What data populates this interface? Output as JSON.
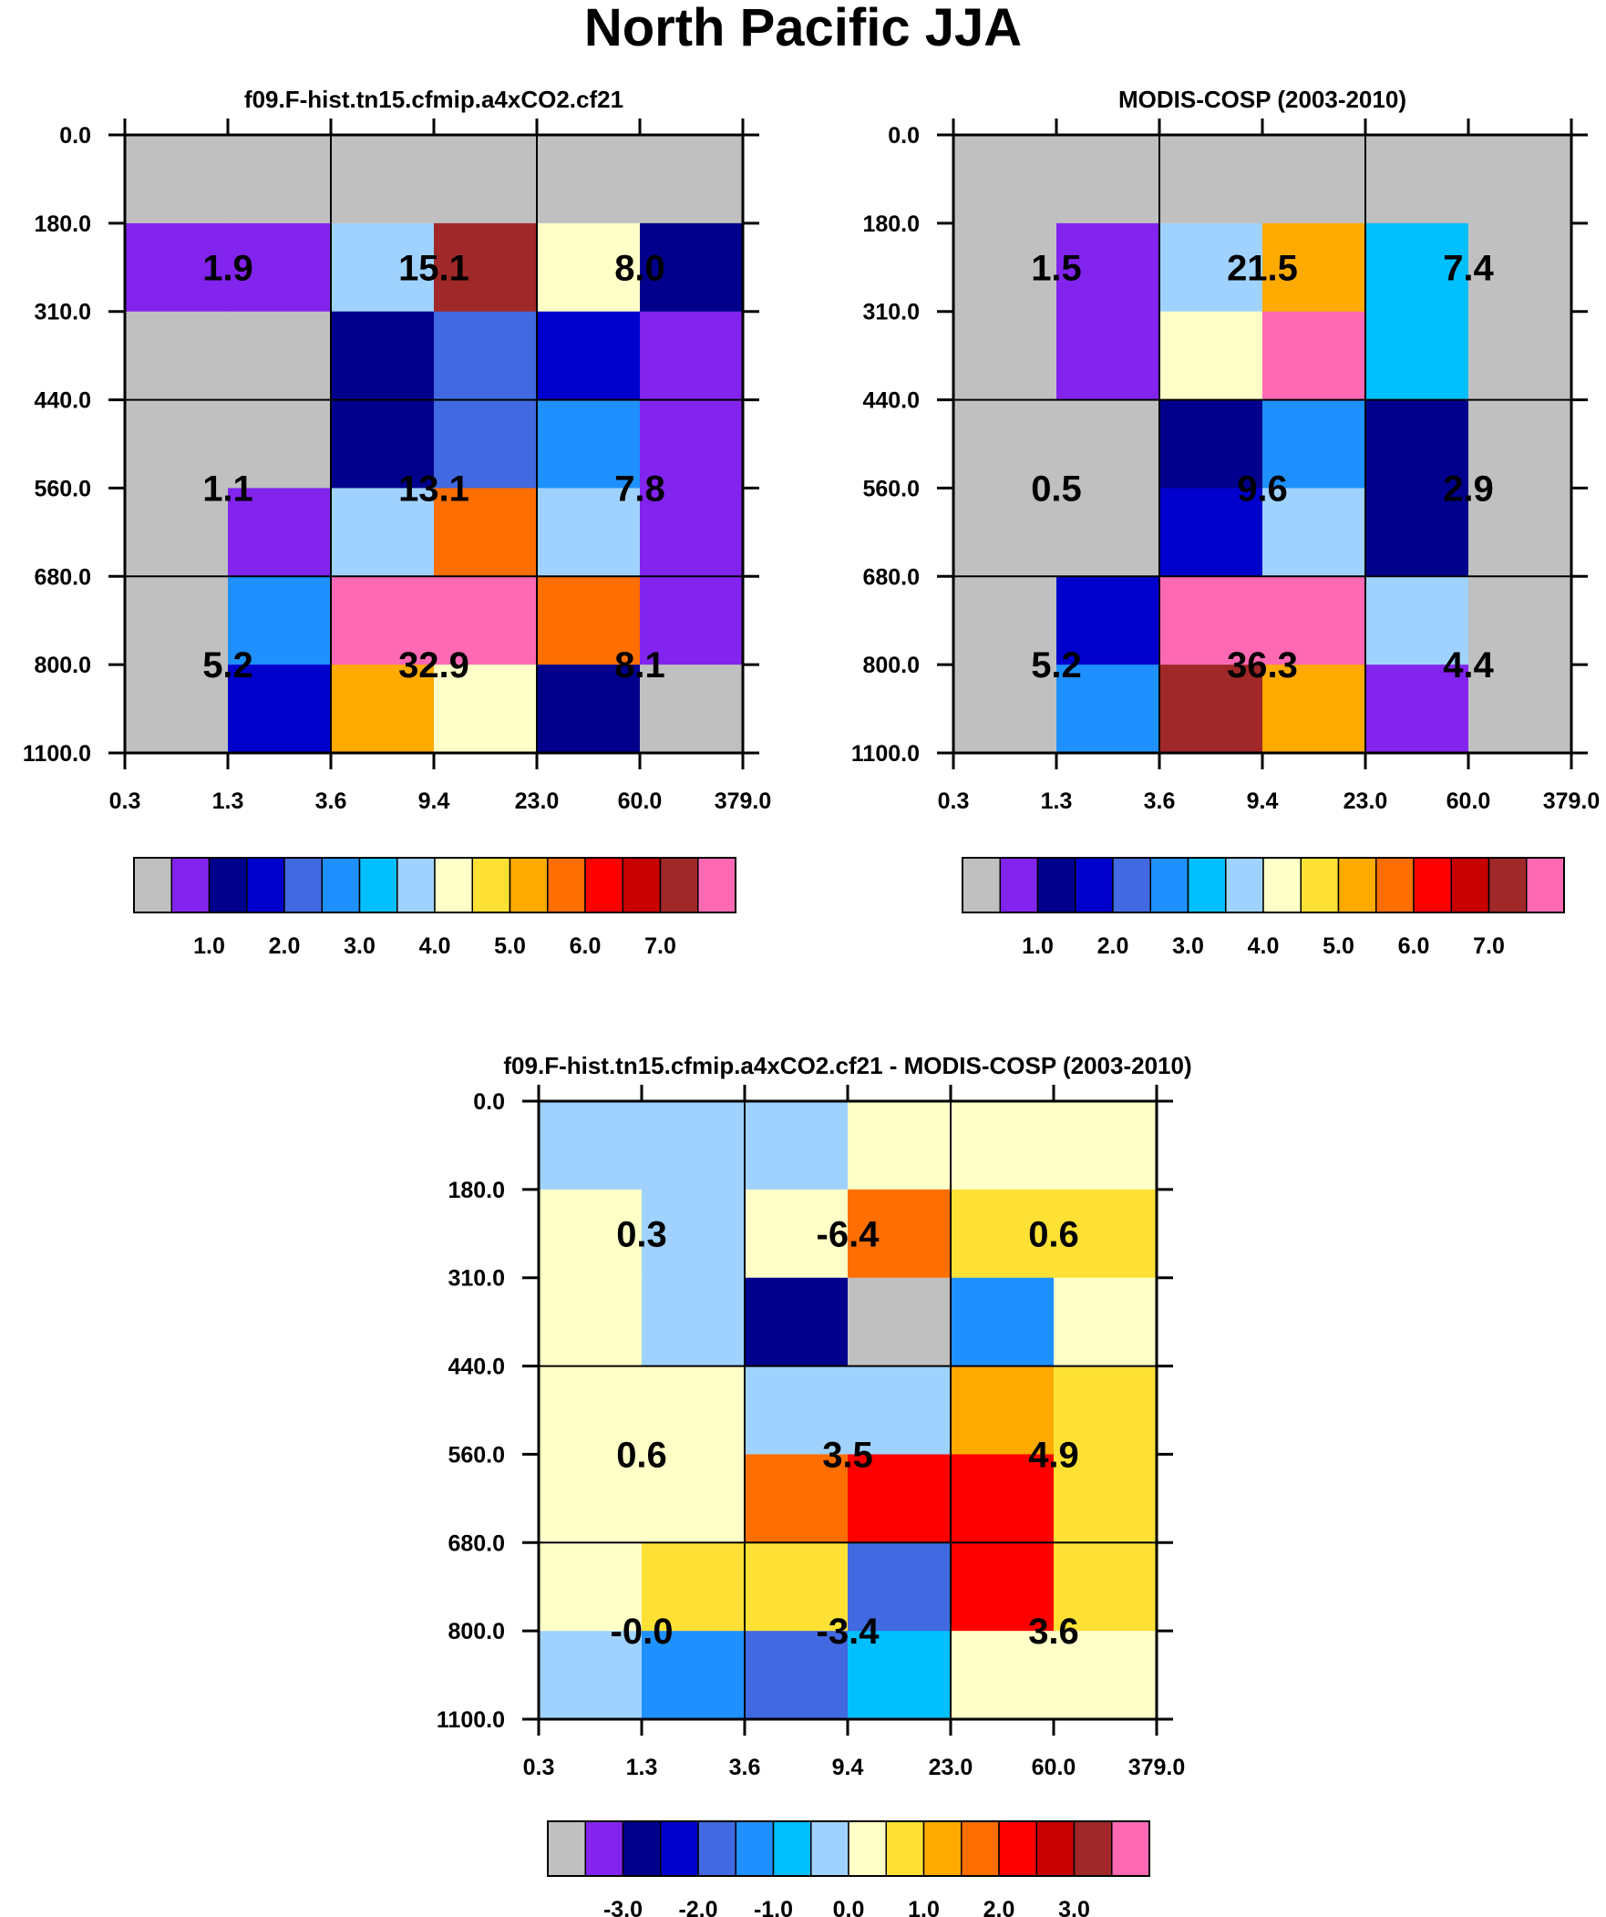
{
  "title": "North Pacific JJA",
  "palette": [
    "#c0c0c0",
    "#8224ee",
    "#00008c",
    "#0000cd",
    "#4169e1",
    "#1e90ff",
    "#00bfff",
    "#a0d2ff",
    "#ffffc8",
    "#ffe135",
    "#ffaa00",
    "#ff6e00",
    "#ff0000",
    "#c80000",
    "#a02828",
    "#ff69b4"
  ],
  "chart_data": [
    {
      "type": "heatmap",
      "title": "f09.F-hist.tn15.cfmip.a4xCO2.cf21",
      "x_ticks": [
        "0.3",
        "1.3",
        "3.6",
        "9.4",
        "23.0",
        "60.0",
        "379.0"
      ],
      "y_ticks": [
        "0.0",
        "180.0",
        "310.0",
        "440.0",
        "560.0",
        "680.0",
        "800.0",
        "1100.0"
      ],
      "colorbar_labels": [
        "1.0",
        "2.0",
        "3.0",
        "4.0",
        "5.0",
        "6.0",
        "7.0"
      ],
      "cell_color_index": [
        [
          0,
          0,
          0,
          0,
          0,
          0
        ],
        [
          1,
          1,
          7,
          14,
          8,
          2
        ],
        [
          0,
          0,
          2,
          4,
          3,
          1
        ],
        [
          0,
          0,
          2,
          4,
          5,
          1
        ],
        [
          0,
          1,
          7,
          11,
          7,
          1
        ],
        [
          0,
          5,
          15,
          15,
          11,
          1
        ],
        [
          0,
          3,
          10,
          8,
          2,
          0
        ]
      ],
      "group_values": [
        [
          "1.9",
          "15.1",
          "8.0"
        ],
        [
          "1.1",
          "13.1",
          "7.8"
        ],
        [
          "5.2",
          "32.9",
          "8.1"
        ]
      ]
    },
    {
      "type": "heatmap",
      "title": "MODIS-COSP (2003-2010)",
      "x_ticks": [
        "0.3",
        "1.3",
        "3.6",
        "9.4",
        "23.0",
        "60.0",
        "379.0"
      ],
      "y_ticks": [
        "0.0",
        "180.0",
        "310.0",
        "440.0",
        "560.0",
        "680.0",
        "800.0",
        "1100.0"
      ],
      "colorbar_labels": [
        "1.0",
        "2.0",
        "3.0",
        "4.0",
        "5.0",
        "6.0",
        "7.0"
      ],
      "cell_color_index": [
        [
          0,
          0,
          0,
          0,
          0,
          0
        ],
        [
          0,
          1,
          7,
          10,
          6,
          0
        ],
        [
          0,
          1,
          8,
          15,
          6,
          0
        ],
        [
          0,
          0,
          2,
          5,
          2,
          0
        ],
        [
          0,
          0,
          3,
          7,
          2,
          0
        ],
        [
          0,
          3,
          15,
          15,
          7,
          0
        ],
        [
          0,
          5,
          14,
          10,
          1,
          0
        ]
      ],
      "group_values": [
        [
          "1.5",
          "21.5",
          "7.4"
        ],
        [
          "0.5",
          "9.6",
          "2.9"
        ],
        [
          "5.2",
          "36.3",
          "4.4"
        ]
      ]
    },
    {
      "type": "heatmap",
      "title": "f09.F-hist.tn15.cfmip.a4xCO2.cf21 - MODIS-COSP (2003-2010)",
      "x_ticks": [
        "0.3",
        "1.3",
        "3.6",
        "9.4",
        "23.0",
        "60.0",
        "379.0"
      ],
      "y_ticks": [
        "0.0",
        "180.0",
        "310.0",
        "440.0",
        "560.0",
        "680.0",
        "800.0",
        "1100.0"
      ],
      "colorbar_labels": [
        "-3.0",
        "-2.0",
        "-1.0",
        "0.0",
        "1.0",
        "2.0",
        "3.0"
      ],
      "cell_color_index": [
        [
          7,
          7,
          7,
          8,
          8,
          8
        ],
        [
          8,
          7,
          8,
          11,
          9,
          9
        ],
        [
          8,
          7,
          2,
          0,
          5,
          8
        ],
        [
          8,
          8,
          7,
          7,
          10,
          9
        ],
        [
          8,
          8,
          11,
          12,
          12,
          9
        ],
        [
          8,
          9,
          9,
          4,
          12,
          9
        ],
        [
          7,
          5,
          4,
          6,
          8,
          8
        ]
      ],
      "group_values": [
        [
          "0.3",
          "-6.4",
          "0.6"
        ],
        [
          "0.6",
          "3.5",
          "4.9"
        ],
        [
          "-0.0",
          "-3.4",
          "3.6"
        ]
      ]
    }
  ]
}
